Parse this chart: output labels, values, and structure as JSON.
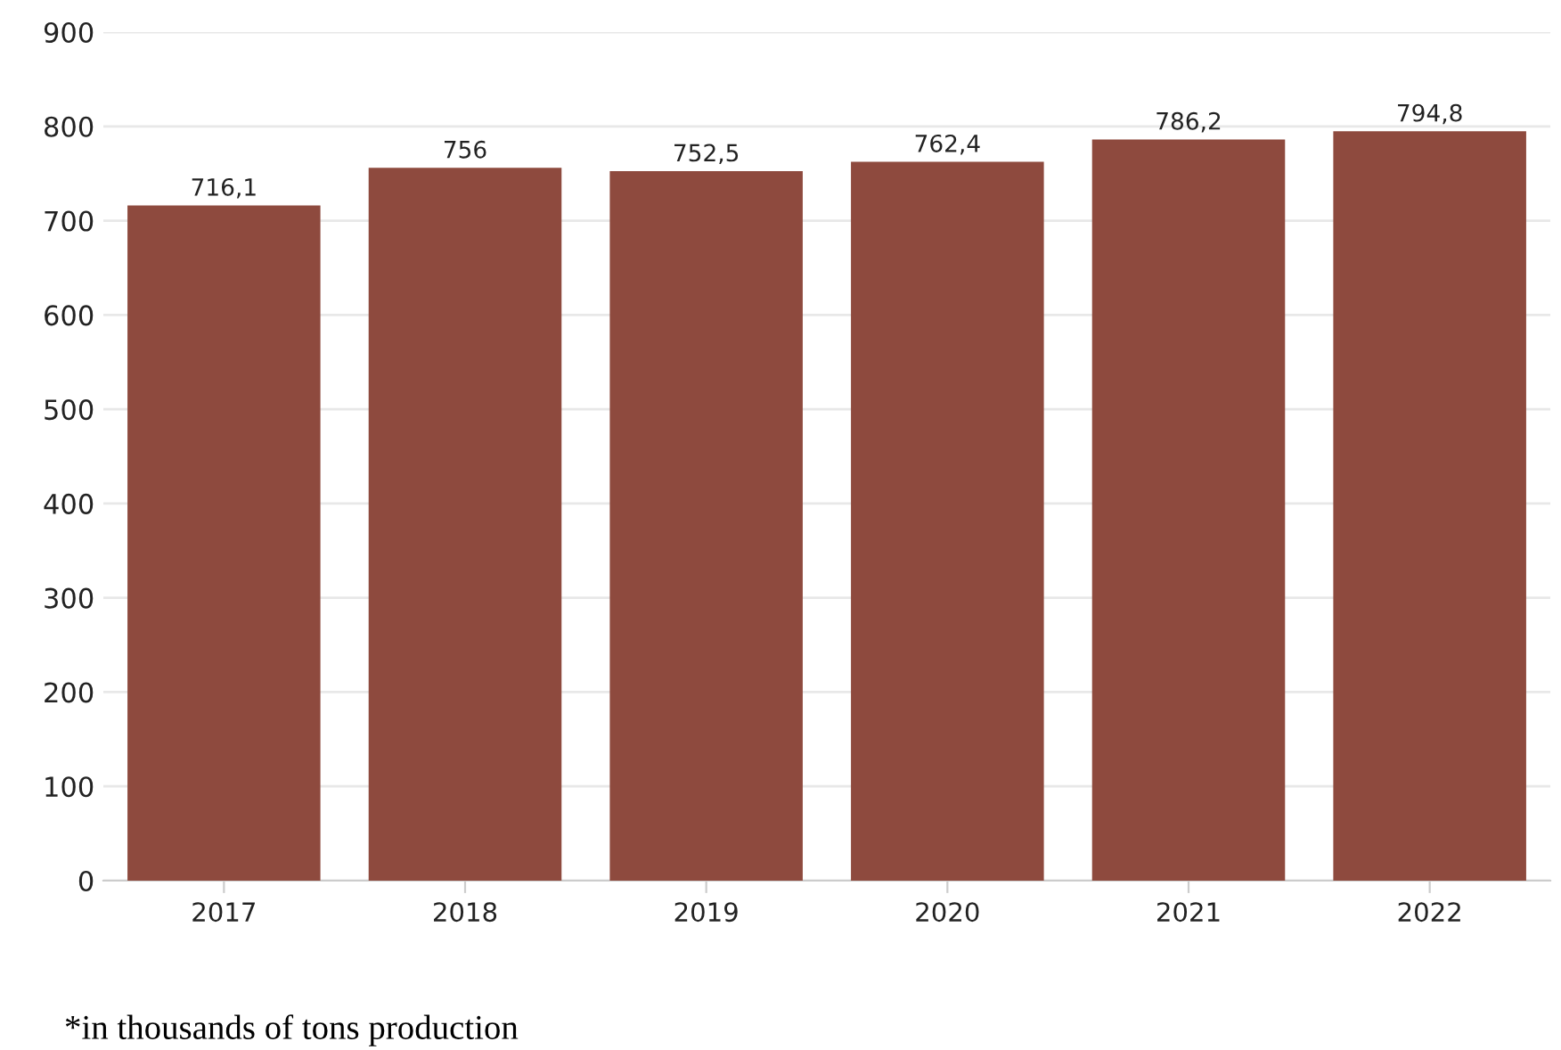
{
  "chart_data": {
    "type": "bar",
    "categories": [
      "2017",
      "2018",
      "2019",
      "2020",
      "2021",
      "2022"
    ],
    "values": [
      716.1,
      756,
      752.5,
      762.4,
      786.2,
      794.8
    ],
    "value_labels": [
      "716,1",
      "756",
      "752,5",
      "762,4",
      "786,2",
      "794,8"
    ],
    "color": "#8e4a3e",
    "ylim": [
      0,
      900
    ],
    "yticks": [
      0,
      100,
      200,
      300,
      400,
      500,
      600,
      700,
      800,
      900
    ],
    "grid": "y",
    "annotations": [
      "*in thousands of tons production"
    ]
  }
}
